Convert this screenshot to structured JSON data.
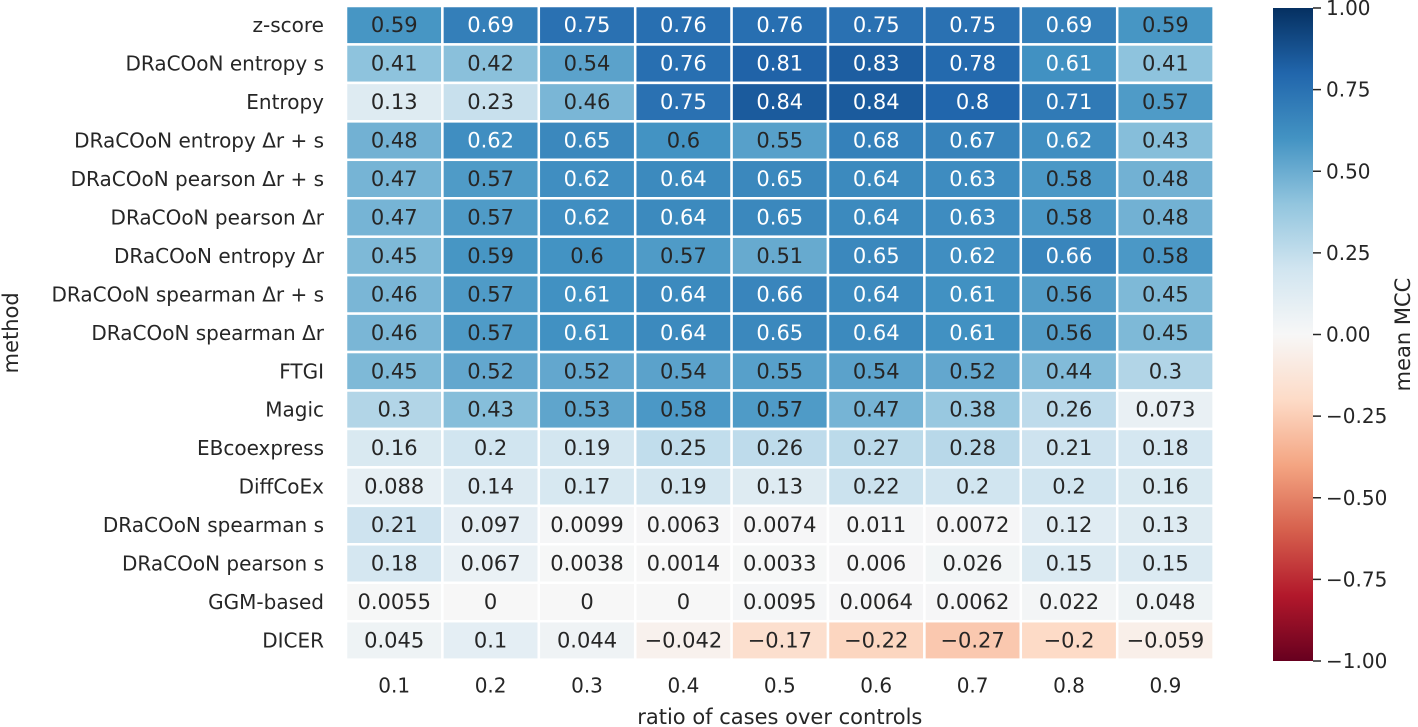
{
  "chart_data": {
    "type": "heatmap",
    "xlabel": "ratio of cases over controls",
    "ylabel": "method",
    "colorbar_label": "mean MCC",
    "x": [
      "0.1",
      "0.2",
      "0.3",
      "0.4",
      "0.5",
      "0.6",
      "0.7",
      "0.8",
      "0.9"
    ],
    "y": [
      "z-score",
      "DRaCOoN entropy s",
      "Entropy",
      "DRaCOoN entropy Δr + s",
      "DRaCOoN pearson Δr + s",
      "DRaCOoN pearson Δr",
      "DRaCOoN entropy Δr",
      "DRaCOoN spearman Δr + s",
      "DRaCOoN spearman Δr",
      "FTGI",
      "Magic",
      "EBcoexpress",
      "DiffCoEx",
      "DRaCOoN spearman s",
      "DRaCOoN pearson s",
      "GGM-based",
      "DICER"
    ],
    "values": [
      [
        0.59,
        0.69,
        0.75,
        0.76,
        0.76,
        0.75,
        0.75,
        0.69,
        0.59
      ],
      [
        0.41,
        0.42,
        0.54,
        0.76,
        0.81,
        0.83,
        0.78,
        0.61,
        0.41
      ],
      [
        0.13,
        0.23,
        0.46,
        0.75,
        0.84,
        0.84,
        0.8,
        0.71,
        0.57
      ],
      [
        0.48,
        0.62,
        0.65,
        0.6,
        0.55,
        0.68,
        0.67,
        0.62,
        0.43
      ],
      [
        0.47,
        0.57,
        0.62,
        0.64,
        0.65,
        0.64,
        0.63,
        0.58,
        0.48
      ],
      [
        0.47,
        0.57,
        0.62,
        0.64,
        0.65,
        0.64,
        0.63,
        0.58,
        0.48
      ],
      [
        0.45,
        0.59,
        0.6,
        0.57,
        0.51,
        0.65,
        0.62,
        0.66,
        0.58
      ],
      [
        0.46,
        0.57,
        0.61,
        0.64,
        0.66,
        0.64,
        0.61,
        0.56,
        0.45
      ],
      [
        0.46,
        0.57,
        0.61,
        0.64,
        0.65,
        0.64,
        0.61,
        0.56,
        0.45
      ],
      [
        0.45,
        0.52,
        0.52,
        0.54,
        0.55,
        0.54,
        0.52,
        0.44,
        0.3
      ],
      [
        0.3,
        0.43,
        0.53,
        0.58,
        0.57,
        0.47,
        0.38,
        0.26,
        0.073
      ],
      [
        0.16,
        0.2,
        0.19,
        0.25,
        0.26,
        0.27,
        0.28,
        0.21,
        0.18
      ],
      [
        0.088,
        0.14,
        0.17,
        0.19,
        0.13,
        0.22,
        0.2,
        0.2,
        0.16
      ],
      [
        0.21,
        0.097,
        0.0099,
        0.0063,
        0.0074,
        0.011,
        0.0072,
        0.12,
        0.13
      ],
      [
        0.18,
        0.067,
        0.0038,
        0.0014,
        0.0033,
        0.006,
        0.026,
        0.15,
        0.15
      ],
      [
        0.0055,
        0,
        0,
        0,
        0.0095,
        0.0064,
        0.0062,
        0.022,
        0.048
      ],
      [
        0.045,
        0.1,
        0.044,
        -0.042,
        -0.17,
        -0.22,
        -0.27,
        -0.2,
        -0.059
      ]
    ],
    "value_labels": [
      [
        "0.59",
        "0.69",
        "0.75",
        "0.76",
        "0.76",
        "0.75",
        "0.75",
        "0.69",
        "0.59"
      ],
      [
        "0.41",
        "0.42",
        "0.54",
        "0.76",
        "0.81",
        "0.83",
        "0.78",
        "0.61",
        "0.41"
      ],
      [
        "0.13",
        "0.23",
        "0.46",
        "0.75",
        "0.84",
        "0.84",
        "0.8",
        "0.71",
        "0.57"
      ],
      [
        "0.48",
        "0.62",
        "0.65",
        "0.6",
        "0.55",
        "0.68",
        "0.67",
        "0.62",
        "0.43"
      ],
      [
        "0.47",
        "0.57",
        "0.62",
        "0.64",
        "0.65",
        "0.64",
        "0.63",
        "0.58",
        "0.48"
      ],
      [
        "0.47",
        "0.57",
        "0.62",
        "0.64",
        "0.65",
        "0.64",
        "0.63",
        "0.58",
        "0.48"
      ],
      [
        "0.45",
        "0.59",
        "0.6",
        "0.57",
        "0.51",
        "0.65",
        "0.62",
        "0.66",
        "0.58"
      ],
      [
        "0.46",
        "0.57",
        "0.61",
        "0.64",
        "0.66",
        "0.64",
        "0.61",
        "0.56",
        "0.45"
      ],
      [
        "0.46",
        "0.57",
        "0.61",
        "0.64",
        "0.65",
        "0.64",
        "0.61",
        "0.56",
        "0.45"
      ],
      [
        "0.45",
        "0.52",
        "0.52",
        "0.54",
        "0.55",
        "0.54",
        "0.52",
        "0.44",
        "0.3"
      ],
      [
        "0.3",
        "0.43",
        "0.53",
        "0.58",
        "0.57",
        "0.47",
        "0.38",
        "0.26",
        "0.073"
      ],
      [
        "0.16",
        "0.2",
        "0.19",
        "0.25",
        "0.26",
        "0.27",
        "0.28",
        "0.21",
        "0.18"
      ],
      [
        "0.088",
        "0.14",
        "0.17",
        "0.19",
        "0.13",
        "0.22",
        "0.2",
        "0.2",
        "0.16"
      ],
      [
        "0.21",
        "0.097",
        "0.0099",
        "0.0063",
        "0.0074",
        "0.011",
        "0.0072",
        "0.12",
        "0.13"
      ],
      [
        "0.18",
        "0.067",
        "0.0038",
        "0.0014",
        "0.0033",
        "0.006",
        "0.026",
        "0.15",
        "0.15"
      ],
      [
        "0.0055",
        "0",
        "0",
        "0",
        "0.0095",
        "0.0064",
        "0.0062",
        "0.022",
        "0.048"
      ],
      [
        "0.045",
        "0.1",
        "0.044",
        "−0.042",
        "−0.17",
        "−0.22",
        "−0.27",
        "−0.2",
        "−0.059"
      ]
    ],
    "colormap": "RdBu",
    "vmin": -1.0,
    "vmax": 1.0,
    "colorbar_ticks": [
      "1.00",
      "0.75",
      "0.50",
      "0.25",
      "0.00",
      "−0.25",
      "−0.50",
      "−0.75",
      "−1.00"
    ],
    "colorbar_tick_values": [
      1.0,
      0.75,
      0.5,
      0.25,
      0.0,
      -0.25,
      -0.5,
      -0.75,
      -1.0
    ],
    "grid": "white cell separators",
    "colors": {
      "rdbu_stops": [
        "#67001f",
        "#b2182b",
        "#d6604d",
        "#f4a582",
        "#fddbc7",
        "#f7f7f7",
        "#d1e5f0",
        "#92c5de",
        "#4393c3",
        "#2166ac",
        "#053061"
      ],
      "text_dark": "#262626",
      "text_light": "#ffffff"
    }
  }
}
